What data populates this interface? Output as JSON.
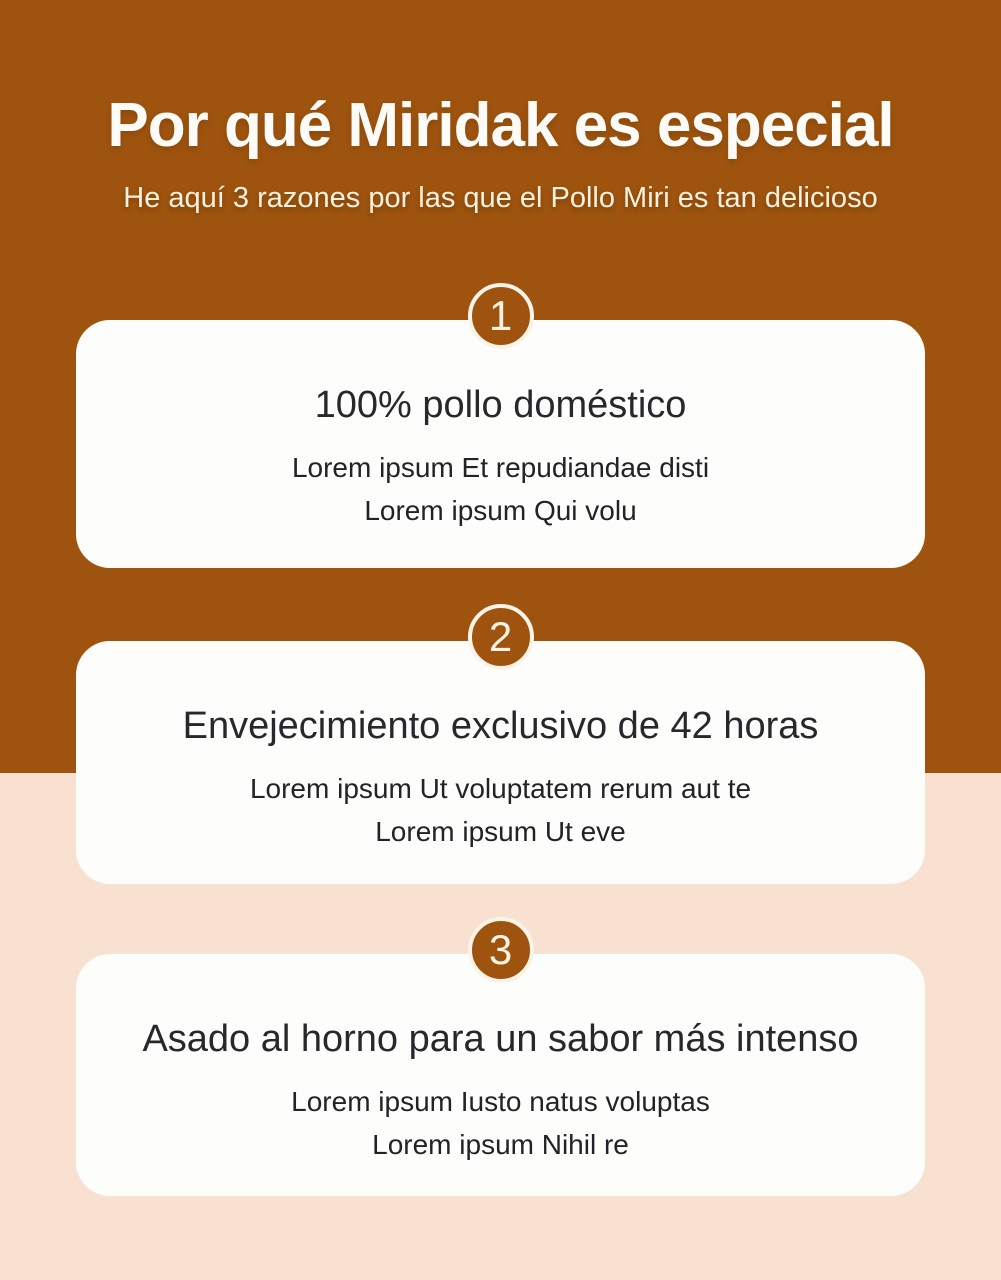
{
  "header": {
    "title": "Por qué Miridak es especial",
    "subtitle": "He aquí 3 razones por las que el Pollo Miri es tan delicioso"
  },
  "cards": [
    {
      "number": "1",
      "title": "100% pollo doméstico",
      "lines": [
        "Lorem ipsum Et repudiandae disti",
        "Lorem ipsum Qui volu"
      ]
    },
    {
      "number": "2",
      "title": "Envejecimiento exclusivo de 42 horas",
      "lines": [
        "Lorem ipsum Ut voluptatem rerum aut te",
        "Lorem ipsum Ut eve"
      ]
    },
    {
      "number": "3",
      "title": "Asado al horno para un sabor más intenso",
      "lines": [
        "Lorem ipsum Iusto natus voluptas",
        "Lorem ipsum Nihil re"
      ]
    }
  ],
  "colors": {
    "background_top": "#9E540E",
    "background_bottom": "#F8E1D1",
    "card_background": "#FDFDFB",
    "badge_fill": "#9E540E",
    "badge_ring": "#FAF4E8",
    "heading_text": "#FCFBF8",
    "subtitle_text": "#FBF1DF",
    "card_title_text": "#26282B",
    "card_body_text": "#222326"
  }
}
